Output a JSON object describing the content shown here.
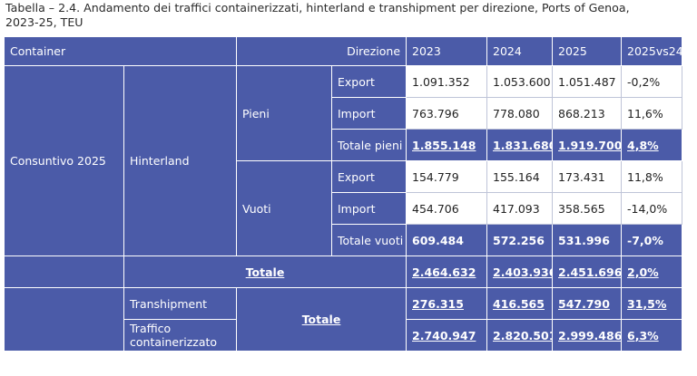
{
  "caption": "Tabella – 2.4. Andamento dei traffici containerizzati, hinterland e transhipment per direzione, Ports of Genoa, 2023-25, TEU",
  "header": {
    "container": "Container",
    "direzione": "Direzione",
    "y2023": "2023",
    "y2024": "2024",
    "y2025": "2025",
    "var": "2025vs24"
  },
  "labels": {
    "consuntivo": "Consuntivo 2025",
    "hinterland": "Hinterland",
    "pieni": "Pieni",
    "vuoti": "Vuoti",
    "export": "Export",
    "import": "Import",
    "totale_pieni": "Totale pieni",
    "totale_vuoti": "Totale vuoti",
    "totale": "Totale",
    "transhipment": "Transhipment",
    "traffico": "Traffico containerizzato"
  },
  "rows": {
    "pieni_export": [
      "1.091.352",
      "1.053.600",
      "1.051.487",
      "-0,2%"
    ],
    "pieni_import": [
      "763.796",
      "778.080",
      "868.213",
      "11,6%"
    ],
    "totale_pieni": [
      "1.855.148",
      "1.831.680",
      "1.919.700",
      "4,8%"
    ],
    "vuoti_export": [
      "154.779",
      "155.164",
      "173.431",
      "11,8%"
    ],
    "vuoti_import": [
      "454.706",
      "417.093",
      "358.565",
      "-14,0%"
    ],
    "totale_vuoti": [
      "609.484",
      "572.256",
      "531.996",
      "-7,0%"
    ],
    "totale_hinterland": [
      "2.464.632",
      "2.403.936",
      "2.451.696",
      "2,0%"
    ],
    "transhipment": [
      "276.315",
      "416.565",
      "547.790",
      "31,5%"
    ],
    "traffico": [
      "2.740.947",
      "2.820.501",
      "2.999.486",
      "6,3%"
    ]
  }
}
